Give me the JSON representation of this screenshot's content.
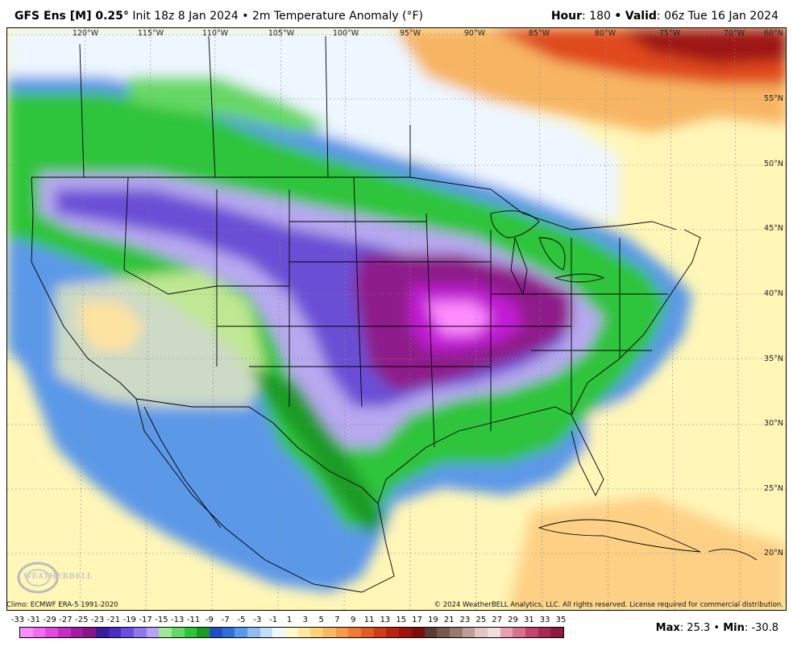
{
  "header": {
    "model": "GFS Ens [M] 0.25",
    "degree": "°",
    "init": " Init 18z 8 Jan 2024",
    "bullet": " • ",
    "field": "2m Temperature Anomaly (°F)",
    "hour_label": "Hour",
    "hour_value": ": 180 ",
    "valid_label": "Valid",
    "valid_value": ": 06z Tue 16 Jan 2024"
  },
  "map": {
    "longitude_labels": [
      "120°W",
      "115°W",
      "110°W",
      "105°W",
      "100°W",
      "95°W",
      "90°W",
      "85°W",
      "80°W",
      "75°W",
      "70°W"
    ],
    "latitude_labels": [
      "60°N",
      "55°N",
      "50°N",
      "45°N",
      "40°N",
      "35°N",
      "30°N",
      "25°N",
      "20°N"
    ],
    "colors": {
      "deep_cold": "#c21fd6",
      "very_cold": "#8e1a8a",
      "purple": "#6b4fd6",
      "lavender": "#b7a8f0",
      "blue": "#2f6fd8",
      "light_blue": "#a9cff2",
      "green": "#2ec43a",
      "light_green": "#9ee89a",
      "pale": "#eef6ff",
      "warm_pale": "#fff6b8",
      "warm": "#f7b564",
      "hot": "#e04a1c",
      "very_hot": "#9e1414"
    }
  },
  "footer": {
    "climo": "Climo: ECMWF ERA-5 1991-2020",
    "copyright": "© 2024 WeatherBELL Analytics, LLC. All rights reserved. License required for commercial distribution.",
    "logo_text": "WEATHERBELL",
    "logo_icon": "weatherbell-swirl-icon"
  },
  "colorbar": {
    "labels": [
      "-33",
      "-31",
      "-29",
      "-27",
      "-25",
      "-23",
      "-21",
      "-19",
      "-17",
      "-15",
      "-13",
      "-11",
      "-9",
      "-7",
      "-5",
      "-3",
      "-1",
      "1",
      "3",
      "5",
      "7",
      "9",
      "11",
      "13",
      "15",
      "17",
      "19",
      "21",
      "23",
      "25",
      "27",
      "29",
      "31",
      "33",
      "35"
    ],
    "colors": [
      "#ff8cff",
      "#f26cf2",
      "#e04ae0",
      "#c42ec4",
      "#a31ca3",
      "#8a148a",
      "#3b1a9e",
      "#4a2dc4",
      "#6a4ee0",
      "#8f78ee",
      "#b3a2f5",
      "#9ee89a",
      "#66d866",
      "#2ec43a",
      "#1b9a26",
      "#1f4fc4",
      "#2f6fd8",
      "#5c98e8",
      "#8fbdf0",
      "#c3dcf7",
      "#eef6ff",
      "#fff9c8",
      "#ffe9a0",
      "#ffd27a",
      "#fbb862",
      "#f59a4c",
      "#ee7a36",
      "#e25a24",
      "#d03c16",
      "#b82410",
      "#9e140c",
      "#7e0c0a",
      "#5e3a34",
      "#7a5650",
      "#9a7872",
      "#c29c96",
      "#e2c4c0",
      "#f2dedb",
      "#e8a0b0",
      "#d87090",
      "#c04670",
      "#a82a54",
      "#8e1a3e"
    ]
  },
  "stats": {
    "max_label": "Max",
    "max_value": ": 25.3",
    "bullet": " • ",
    "min_label": "Min",
    "min_value": ": -30.8"
  }
}
